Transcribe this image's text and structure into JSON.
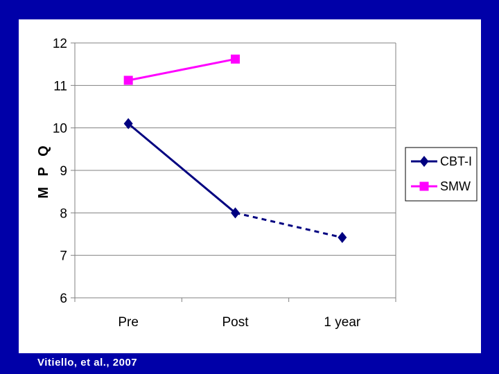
{
  "chart_data": {
    "type": "line",
    "title": "",
    "xlabel": "",
    "ylabel": "M P Q",
    "categories": [
      "Pre",
      "Post",
      "1 year"
    ],
    "ylim": [
      6,
      12
    ],
    "yticks": [
      "6",
      "7",
      "8",
      "9",
      "10",
      "11",
      "12"
    ],
    "grid": true,
    "legend_position": "right",
    "series": [
      {
        "name": "CBT-I",
        "values": [
          10.1,
          8.0,
          7.42
        ],
        "color": "#000080",
        "marker": "diamond",
        "line_style": [
          "solid",
          "dashed"
        ]
      },
      {
        "name": "SMW",
        "values": [
          11.12,
          11.62,
          null
        ],
        "color": "#ff00ff",
        "marker": "square",
        "line_style": [
          "solid"
        ]
      }
    ]
  },
  "citation": "Vitiello, et al., 2007"
}
